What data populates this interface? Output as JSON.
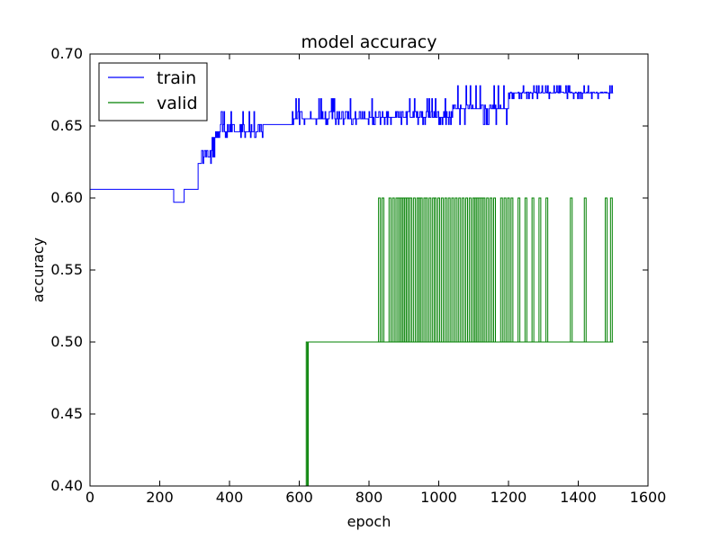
{
  "chart_data": {
    "type": "line",
    "title": "model accuracy",
    "xlabel": "epoch",
    "ylabel": "accuracy",
    "xlim": [
      0,
      1600
    ],
    "ylim": [
      0.4,
      0.7
    ],
    "xticks": [
      "0",
      "200",
      "400",
      "600",
      "800",
      "1000",
      "1200",
      "1400",
      "1600"
    ],
    "yticks": [
      "0.40",
      "0.45",
      "0.50",
      "0.55",
      "0.60",
      "0.65",
      "0.70"
    ],
    "legend": {
      "placement": "top-left",
      "entries": [
        "train",
        "valid"
      ]
    },
    "grid": false,
    "series": [
      {
        "name": "train",
        "color": "#0000ff",
        "segments": [
          {
            "from": 0,
            "to": 240,
            "value": 0.606
          },
          {
            "from": 240,
            "to": 270,
            "value": 0.597
          },
          {
            "from": 270,
            "to": 310,
            "value": 0.606
          },
          {
            "from": 310,
            "to": 320,
            "value": 0.624
          },
          {
            "from": 320,
            "to": 350,
            "value": 0.633
          },
          {
            "from": 350,
            "to": 360,
            "value": 0.642
          },
          {
            "from": 360,
            "to": 500,
            "value": 0.646
          },
          {
            "from": 500,
            "to": 580,
            "value": 0.651
          },
          {
            "from": 580,
            "to": 800,
            "value": 0.655
          },
          {
            "from": 800,
            "to": 1040,
            "value": 0.656
          },
          {
            "from": 1040,
            "to": 1200,
            "value": 0.662
          },
          {
            "from": 1200,
            "to": 1500,
            "value": 0.673
          }
        ],
        "fluctuation_ranges": [
          {
            "from": 320,
            "to": 360,
            "low": 0.624,
            "high": 0.633
          },
          {
            "from": 360,
            "to": 500,
            "low": 0.642,
            "high": 0.66
          },
          {
            "from": 580,
            "to": 800,
            "low": 0.651,
            "high": 0.669
          },
          {
            "from": 800,
            "to": 1040,
            "low": 0.651,
            "high": 0.669
          },
          {
            "from": 1040,
            "to": 1200,
            "low": 0.651,
            "high": 0.678
          },
          {
            "from": 1200,
            "to": 1500,
            "low": 0.669,
            "high": 0.678
          }
        ]
      },
      {
        "name": "valid",
        "color": "#008000",
        "baseline_segments": [
          {
            "from": 0,
            "to": 620,
            "value": 0.4
          },
          {
            "from": 620,
            "to": 1500,
            "value": 0.5
          }
        ],
        "spikes_to_0_60": [
          830,
          840,
          860,
          870,
          880,
          885,
          890,
          895,
          900,
          905,
          910,
          915,
          920,
          930,
          940,
          945,
          950,
          960,
          965,
          975,
          985,
          990,
          1000,
          1010,
          1020,
          1030,
          1040,
          1050,
          1060,
          1070,
          1080,
          1090,
          1100,
          1105,
          1110,
          1115,
          1120,
          1125,
          1130,
          1140,
          1150,
          1160,
          1180,
          1190,
          1200,
          1210,
          1230,
          1250,
          1270,
          1290,
          1310,
          1380,
          1420,
          1480,
          1495
        ]
      }
    ]
  }
}
